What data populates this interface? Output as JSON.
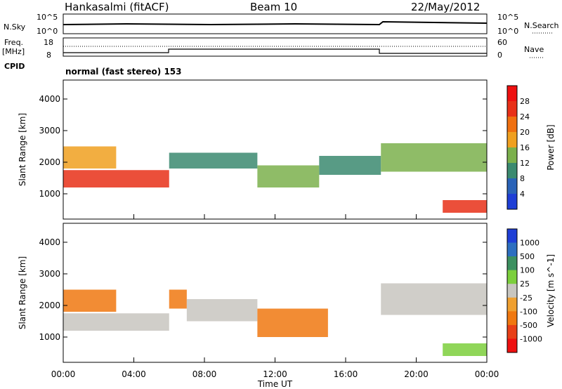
{
  "header": {
    "station": "Hankasalmi (fitACF)",
    "beam": "Beam 10",
    "date": "22/May/2012"
  },
  "panels": {
    "nsky_label": "N.Sky",
    "nsearch_label": "N.Search",
    "nsky_tick_top": "10^5",
    "nsky_tick_bottom": "10^0",
    "nsearch_tick_top": "10^5",
    "nsearch_tick_bottom": "10^0",
    "freq_label_1": "Freq.",
    "freq_label_2": "[MHz]",
    "freq_ticks": [
      "18",
      "8"
    ],
    "nave_label": "Nave",
    "nave_ticks": [
      "60",
      "0"
    ],
    "cpid_label": "CPID",
    "cpid_text": "normal (fast stereo) 153"
  },
  "chart_data": [
    {
      "type": "heatmap",
      "name": "power",
      "ylabel": "Slant Range [km]",
      "ylim": [
        200,
        4600
      ],
      "y_ticks": [
        "1000",
        "2000",
        "3000",
        "4000"
      ],
      "xlim": [
        0,
        24
      ],
      "colorbar_label": "Power [dB]",
      "colorbar_ticks": [
        "4",
        "8",
        "12",
        "16",
        "20",
        "24",
        "28"
      ],
      "colors": [
        "#1f3fd6",
        "#2a63b8",
        "#3b8a70",
        "#7bb04c",
        "#f0a020",
        "#f07010",
        "#e83018",
        "#ee1010"
      ],
      "echo_bands": [
        {
          "t": [
            0,
            6
          ],
          "range": [
            1200,
            1750
          ],
          "value": 26
        },
        {
          "t": [
            0,
            3
          ],
          "range": [
            1800,
            2500
          ],
          "value": 18
        },
        {
          "t": [
            6,
            11
          ],
          "range": [
            1800,
            2300
          ],
          "value": 8
        },
        {
          "t": [
            11,
            14.5
          ],
          "range": [
            1200,
            1900
          ],
          "value": 12
        },
        {
          "t": [
            14.5,
            18
          ],
          "range": [
            1600,
            2200
          ],
          "value": 8
        },
        {
          "t": [
            18,
            24
          ],
          "range": [
            1700,
            2600
          ],
          "value": 14
        },
        {
          "t": [
            21.5,
            24
          ],
          "range": [
            400,
            800
          ],
          "value": 26
        }
      ]
    },
    {
      "type": "heatmap",
      "name": "velocity",
      "ylabel": "Slant Range [km]",
      "ylim": [
        200,
        4600
      ],
      "y_ticks": [
        "1000",
        "2000",
        "3000",
        "4000"
      ],
      "xlabel": "Time UT",
      "x_ticks": [
        "00:00",
        "04:00",
        "08:00",
        "12:00",
        "16:00",
        "20:00",
        "00:00"
      ],
      "xlim": [
        0,
        24
      ],
      "colorbar_label": "Velocity [m s^-1]",
      "colorbar_ticks": [
        "1000",
        "500",
        "100",
        "25",
        "-25",
        "-100",
        "-500",
        "-1000"
      ],
      "colors": [
        "#1f3fd6",
        "#2d6fc0",
        "#3c9060",
        "#7ccf3c",
        "#c8c6c0",
        "#f0a030",
        "#f07810",
        "#e84018",
        "#ee1010"
      ],
      "echo_bands": [
        {
          "t": [
            0,
            6
          ],
          "range": [
            1200,
            1750
          ],
          "value": 0
        },
        {
          "t": [
            0,
            3
          ],
          "range": [
            1800,
            2500
          ],
          "value": -200
        },
        {
          "t": [
            6,
            7
          ],
          "range": [
            1900,
            2500
          ],
          "value": -200
        },
        {
          "t": [
            7,
            11
          ],
          "range": [
            1500,
            2200
          ],
          "value": 0
        },
        {
          "t": [
            11,
            15
          ],
          "range": [
            1000,
            1900
          ],
          "value": -150
        },
        {
          "t": [
            18,
            24
          ],
          "range": [
            1700,
            2700
          ],
          "value": 0
        },
        {
          "t": [
            21.5,
            24
          ],
          "range": [
            400,
            800
          ],
          "value": 60
        }
      ]
    }
  ]
}
